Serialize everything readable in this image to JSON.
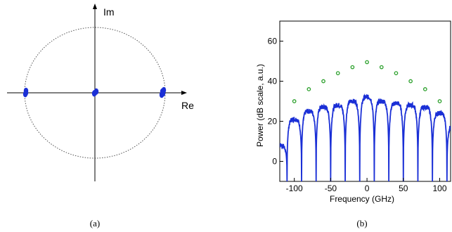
{
  "chart_data": [
    {
      "type": "scatter",
      "axis_labels": {
        "real": "Re",
        "imag": "Im"
      },
      "caption": "(a)",
      "unit_circle": {
        "radius": 1,
        "style": "dotted"
      },
      "xlim": [
        -1.15,
        1.15
      ],
      "ylim": [
        -1.15,
        1.15
      ],
      "points": [
        {
          "re": -0.98,
          "im": 0.0
        },
        {
          "re": -0.98,
          "im": 0.03
        },
        {
          "re": -0.99,
          "im": -0.02
        },
        {
          "re": 0.0,
          "im": 0.0
        },
        {
          "re": 0.02,
          "im": 0.02
        },
        {
          "re": -0.01,
          "im": -0.01
        },
        {
          "re": 0.96,
          "im": 0.02
        },
        {
          "re": 0.98,
          "im": 0.04
        },
        {
          "re": 0.95,
          "im": -0.03
        },
        {
          "re": 0.97,
          "im": -0.01
        }
      ],
      "color": "#1a2fd6"
    },
    {
      "type": "line",
      "caption": "(b)",
      "xlabel": "Frequency (GHz)",
      "ylabel": "Power (dB scale, a.u.)",
      "xlim": [
        -120,
        115
      ],
      "ylim": [
        -10,
        70
      ],
      "xticks": [
        -100,
        -50,
        0,
        50,
        100
      ],
      "yticks": [
        0,
        20,
        40,
        60
      ],
      "spectrum": {
        "color": "#1a2fd6",
        "comb_spacing_ghz": 20,
        "peak_frequencies": [
          -120,
          -100,
          -80,
          -60,
          -40,
          -20,
          0,
          20,
          40,
          60,
          80,
          100,
          120
        ],
        "peak_levels_db": [
          8,
          21,
          25,
          27,
          28,
          30,
          32,
          30,
          29,
          28,
          27,
          24,
          18
        ],
        "floor_db": -10
      },
      "markers": {
        "color": "#2ca02c",
        "x": [
          -100,
          -80,
          -60,
          -40,
          -20,
          0,
          20,
          40,
          60,
          80,
          100
        ],
        "y": [
          30,
          36,
          40,
          44,
          47,
          49.5,
          47,
          44,
          40,
          36,
          30
        ]
      }
    }
  ]
}
